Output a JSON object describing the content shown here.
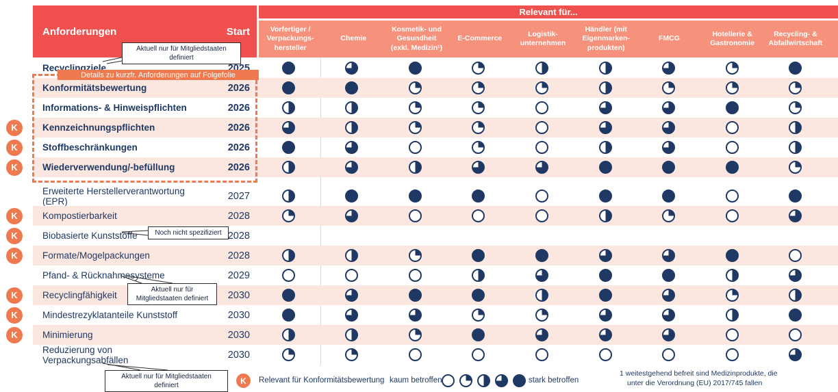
{
  "colors": {
    "red": "#F0514E",
    "salmon": "#F6917C",
    "pink": "#FBE7DF",
    "navy": "#1F3864",
    "orange": "#F07A4F",
    "cborder": "#2b2b2b",
    "divider": "#d9d9d9"
  },
  "chart_data": {
    "type": "heatmap",
    "title": "Relevant für...",
    "row_header": "Anforderungen",
    "start_header": "Start",
    "columns": [
      "Vorfertiger /\nVerpackungs-\nhersteller",
      "Chemie",
      "Kosmetik- und\nGesundheit\n(exkl. Medizin¹)",
      "E-Commerce",
      "Logistik-\nunternehmen",
      "Händler (mit\nEigenmarken-\nprodukten)",
      "FMCG",
      "Hotellerie &\nGastronomie",
      "Recycling- &\nAbfallwirtschaft"
    ],
    "scale": {
      "levels": [
        "empty",
        "quarter",
        "half",
        "three-quarter",
        "full"
      ],
      "min_label": "kaum betroffen",
      "max_label": "stark betroffen",
      "encoding": "harvey ball: 0=kaum betroffen … 4=stark betroffen"
    },
    "rows": [
      {
        "label": "Recyclingziele",
        "start": "2025",
        "k": false,
        "bold": true,
        "shade": false,
        "values": [
          4,
          3,
          4,
          1,
          2,
          2,
          3,
          1,
          4
        ]
      },
      {
        "label": "Konformitätsbewertung",
        "start": "2026",
        "k": false,
        "bold": true,
        "shade": true,
        "values": [
          4,
          4,
          1,
          1,
          1,
          2,
          1,
          1,
          1
        ]
      },
      {
        "label": "Informations- & Hinweispflichten",
        "start": "2026",
        "k": false,
        "bold": true,
        "shade": false,
        "values": [
          2,
          2,
          1,
          1,
          0,
          3,
          3,
          4,
          1
        ]
      },
      {
        "label": "Kennzeichnungspflichten",
        "start": "2026",
        "k": true,
        "bold": true,
        "shade": true,
        "values": [
          3,
          2,
          1,
          1,
          0,
          3,
          3,
          0,
          2
        ]
      },
      {
        "label": "Stoffbeschränkungen",
        "start": "2026",
        "k": true,
        "bold": true,
        "shade": false,
        "values": [
          4,
          3,
          0,
          1,
          0,
          2,
          3,
          0,
          2
        ]
      },
      {
        "label": "Wiederverwendung/-befüllung",
        "start": "2026",
        "k": true,
        "bold": true,
        "shade": true,
        "values": [
          2,
          3,
          2,
          3,
          3,
          4,
          4,
          4,
          1
        ]
      },
      {
        "label": "Erweiterte Herstellerverantwortung (EPR)",
        "start": "2027",
        "k": false,
        "bold": false,
        "shade": false,
        "values": [
          2,
          4,
          4,
          4,
          0,
          4,
          4,
          0,
          4
        ]
      },
      {
        "label": "Kompostierbarkeit",
        "start": "2028",
        "k": true,
        "bold": false,
        "shade": true,
        "values": [
          1,
          3,
          0,
          0,
          0,
          2,
          1,
          0,
          3
        ]
      },
      {
        "label": "Biobasierte Kunststoffe",
        "start": "2028",
        "k": true,
        "bold": false,
        "shade": false,
        "values": null
      },
      {
        "label": "Formate/Mogelpackungen",
        "start": "2028",
        "k": true,
        "bold": false,
        "shade": true,
        "values": [
          2,
          2,
          1,
          4,
          4,
          3,
          3,
          4,
          0
        ]
      },
      {
        "label": "Pfand- & Rücknahmesysteme",
        "start": "2029",
        "k": false,
        "bold": false,
        "shade": false,
        "values": [
          0,
          0,
          0,
          2,
          3,
          4,
          4,
          2,
          3
        ]
      },
      {
        "label": "Recyclingfähigkeit",
        "start": "2030",
        "k": true,
        "bold": false,
        "shade": true,
        "values": [
          4,
          3,
          4,
          4,
          2,
          4,
          3,
          1,
          2
        ]
      },
      {
        "label": "Mindestrezyklatanteile Kunststoff",
        "start": "2030",
        "k": true,
        "bold": false,
        "shade": false,
        "values": [
          4,
          3,
          3,
          1,
          1,
          3,
          3,
          2,
          4
        ]
      },
      {
        "label": "Minimierung",
        "start": "2030",
        "k": true,
        "bold": false,
        "shade": true,
        "values": [
          2,
          2,
          1,
          4,
          3,
          3,
          3,
          0,
          0
        ]
      },
      {
        "label": "Reduzierung von Verpackungsabfällen",
        "start": "2030",
        "k": false,
        "bold": false,
        "shade": false,
        "values": [
          1,
          1,
          0,
          0,
          0,
          0,
          0,
          0,
          3
        ]
      }
    ]
  },
  "callouts": {
    "top": "Aktuell nur für Mitgliedstaaten definiert",
    "details_banner": "Details zu kurzfr. Anforderungen auf Folgefolie",
    "not_specified": "Noch nicht spezifiziert",
    "recyclability": "Aktuell nur für\nMitgliedstaaten definiert",
    "bottom": "Aktuell nur für Mitgliedstaaten definiert"
  },
  "legend": {
    "k_symbol": "K",
    "k_text": "Relevant für Konformitätsbewertung",
    "low_label": "kaum betroffen",
    "high_label": "stark betroffen"
  },
  "footnote": {
    "line1": "1 weitestgehend befreit sind Medizinprodukte, die",
    "line2": "unter die Verordnung (EU) 2017/745 fallen"
  }
}
